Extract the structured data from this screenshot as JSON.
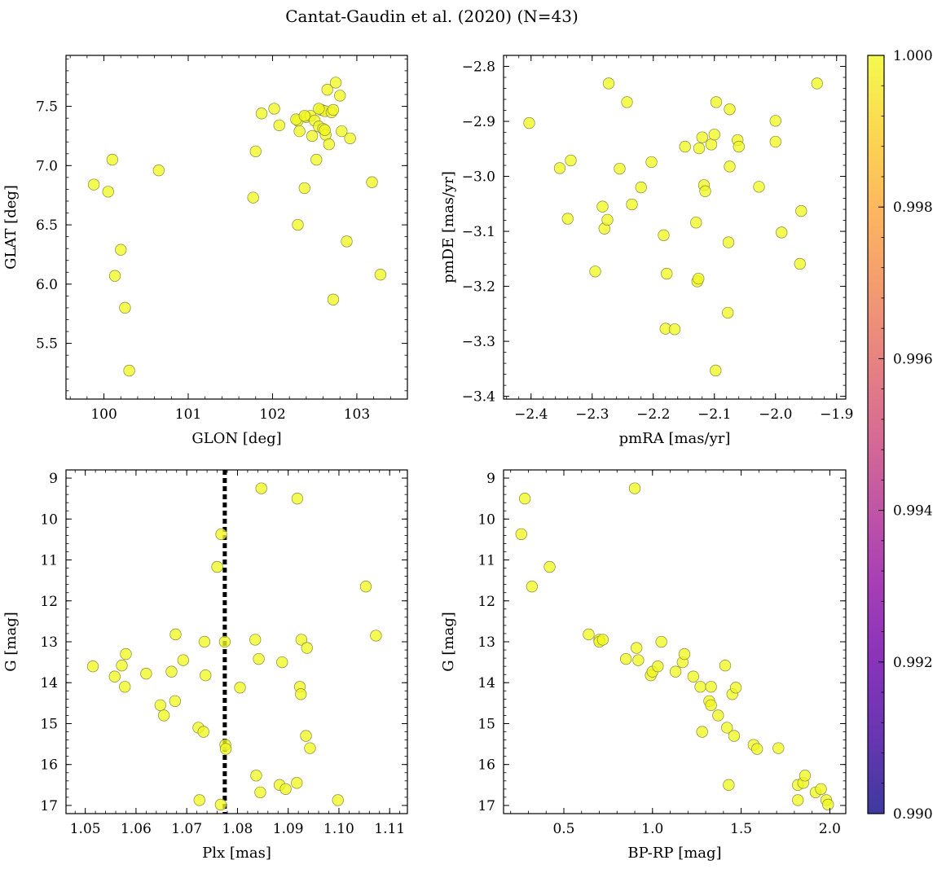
{
  "figure": {
    "title": "Cantat-Gaudin et al. (2020) (N=43)",
    "point_color": "#f0f921",
    "point_edge_color": "#8a8a40",
    "ref_line_color": "#000000"
  },
  "colorbar": {
    "colormap": "plasma",
    "range": [
      0.99,
      1.0
    ],
    "tick_values": [
      0.99,
      0.992,
      0.994,
      0.996,
      0.998,
      1.0
    ],
    "tick_labels": [
      "0.990",
      "0.992",
      "0.994",
      "0.996",
      "0.998",
      "1.000"
    ]
  },
  "chart_data": [
    {
      "id": "glon-glat",
      "type": "scatter",
      "title": "",
      "xlabel": "GLON [deg]",
      "ylabel": "GLAT [deg]",
      "xlim": [
        99.55,
        103.6
      ],
      "ylim": [
        5.03,
        7.93
      ],
      "y_inverted": false,
      "xticks": [
        100,
        101,
        102,
        103
      ],
      "xtick_labels": [
        "100",
        "101",
        "102",
        "103"
      ],
      "yticks": [
        5.5,
        6.0,
        6.5,
        7.0,
        7.5
      ],
      "ytick_labels": [
        "5.5",
        "6.0",
        "6.5",
        "7.0",
        "7.5"
      ],
      "x": [
        99.88,
        100.05,
        100.1,
        100.2,
        100.25,
        100.3,
        100.13,
        100.65,
        101.77,
        101.8,
        101.87,
        102.02,
        102.08,
        102.3,
        102.3,
        102.32,
        102.38,
        102.4,
        102.45,
        102.47,
        102.5,
        102.52,
        102.55,
        102.58,
        102.6,
        102.62,
        102.63,
        102.65,
        102.67,
        102.7,
        102.72,
        102.75,
        102.8,
        102.82,
        102.88,
        102.92,
        102.72,
        103.18,
        103.28,
        102.28,
        102.55,
        102.62,
        102.38
      ],
      "y": [
        6.84,
        6.78,
        7.05,
        6.29,
        5.8,
        5.27,
        6.07,
        6.96,
        6.73,
        7.12,
        7.44,
        7.48,
        7.34,
        6.5,
        7.38,
        7.29,
        6.81,
        7.41,
        7.42,
        7.25,
        7.38,
        7.05,
        7.33,
        7.47,
        7.31,
        7.46,
        7.26,
        7.64,
        7.18,
        7.45,
        7.47,
        7.7,
        7.59,
        7.29,
        6.36,
        7.23,
        5.87,
        6.86,
        6.08,
        7.39,
        7.48,
        7.3,
        7.42
      ]
    },
    {
      "id": "pmra-pmde",
      "type": "scatter",
      "title": "",
      "xlabel": "pmRA [mas/yr]",
      "ylabel": "pmDE [mas/yr]",
      "xlim": [
        -2.445,
        -1.885
      ],
      "ylim": [
        -3.405,
        -2.78
      ],
      "y_inverted": false,
      "xticks": [
        -2.4,
        -2.3,
        -2.2,
        -2.1,
        -2.0,
        -1.9
      ],
      "xtick_labels": [
        "−2.4",
        "−2.3",
        "−2.2",
        "−2.1",
        "−2.0",
        "−1.9"
      ],
      "yticks": [
        -3.4,
        -3.3,
        -3.2,
        -3.1,
        -3.0,
        -2.9,
        -2.8
      ],
      "ytick_labels": [
        "−3.4",
        "−3.3",
        "−3.2",
        "−3.1",
        "−3.0",
        "−2.9",
        "−2.8"
      ],
      "x": [
        -2.403,
        -2.353,
        -2.34,
        -2.335,
        -2.295,
        -2.283,
        -2.28,
        -2.275,
        -2.273,
        -2.255,
        -2.243,
        -2.235,
        -2.22,
        -2.203,
        -2.183,
        -2.18,
        -2.178,
        -2.165,
        -2.148,
        -2.13,
        -2.128,
        -2.126,
        -2.125,
        -2.12,
        -2.117,
        -2.115,
        -2.105,
        -2.1,
        -2.098,
        -2.078,
        -2.077,
        -2.075,
        -2.075,
        -2.062,
        -2.06,
        -2.027,
        -2.0,
        -2.0,
        -1.99,
        -1.96,
        -1.958,
        -1.932,
        -2.097
      ],
      "y": [
        -2.903,
        -2.985,
        -3.077,
        -2.971,
        -3.173,
        -3.055,
        -3.095,
        -3.079,
        -2.831,
        -2.986,
        -2.865,
        -3.051,
        -3.02,
        -2.974,
        -3.107,
        -3.277,
        -3.177,
        -3.278,
        -2.946,
        -3.084,
        -3.191,
        -3.186,
        -2.949,
        -2.929,
        -3.016,
        -3.027,
        -2.942,
        -2.924,
        -3.353,
        -3.248,
        -3.12,
        -2.878,
        -2.982,
        -2.934,
        -2.946,
        -3.019,
        -2.899,
        -2.937,
        -3.102,
        -3.159,
        -3.063,
        -2.831,
        -2.865
      ]
    },
    {
      "id": "plx-g",
      "type": "scatter",
      "title": "",
      "xlabel": "Plx [mas]",
      "ylabel": "G [mag]",
      "xlim": [
        1.0462,
        1.1135
      ],
      "ylim": [
        8.8,
        17.2
      ],
      "y_inverted": true,
      "reference_line_x": 1.0775,
      "xticks": [
        1.05,
        1.06,
        1.07,
        1.08,
        1.09,
        1.1,
        1.11
      ],
      "xtick_labels": [
        "1.05",
        "1.06",
        "1.07",
        "1.08",
        "1.09",
        "1.10",
        "1.11"
      ],
      "yticks": [
        9,
        10,
        11,
        12,
        13,
        14,
        15,
        16,
        17
      ],
      "ytick_labels": [
        "9",
        "10",
        "11",
        "12",
        "13",
        "14",
        "15",
        "16",
        "17"
      ],
      "x": [
        1.0515,
        1.0558,
        1.0572,
        1.0578,
        1.058,
        1.062,
        1.0648,
        1.0655,
        1.067,
        1.0677,
        1.0678,
        1.0693,
        1.0723,
        1.0725,
        1.0733,
        1.0735,
        1.0737,
        1.076,
        1.0767,
        1.0768,
        1.0775,
        1.0776,
        1.0777,
        1.0805,
        1.0835,
        1.0837,
        1.0842,
        1.0845,
        1.0847,
        1.0883,
        1.0888,
        1.0895,
        1.0917,
        1.0918,
        1.0923,
        1.0925,
        1.0926,
        1.0935,
        1.0937,
        1.0943,
        1.0998,
        1.1053,
        1.1073
      ],
      "y": [
        13.6,
        13.85,
        13.58,
        14.1,
        13.3,
        13.78,
        14.55,
        14.8,
        13.73,
        14.45,
        12.82,
        13.45,
        15.1,
        16.87,
        15.2,
        13.0,
        13.82,
        11.17,
        16.98,
        10.37,
        13.0,
        15.52,
        15.62,
        14.12,
        12.95,
        16.27,
        13.42,
        16.68,
        9.25,
        16.5,
        13.5,
        16.6,
        16.45,
        9.5,
        14.1,
        14.28,
        12.95,
        15.3,
        13.15,
        15.6,
        16.87,
        11.65,
        12.85
      ]
    },
    {
      "id": "bprp-g",
      "type": "scatter",
      "title": "",
      "xlabel": "BP-RP [mag]",
      "ylabel": "G [mag]",
      "xlim": [
        0.16,
        2.09
      ],
      "ylim": [
        8.8,
        17.2
      ],
      "y_inverted": true,
      "xticks": [
        0.5,
        1.0,
        1.5,
        2.0
      ],
      "xtick_labels": [
        "0.5",
        "1.0",
        "1.5",
        "2.0"
      ],
      "yticks": [
        9,
        10,
        11,
        12,
        13,
        14,
        15,
        16,
        17
      ],
      "ytick_labels": [
        "9",
        "10",
        "11",
        "12",
        "13",
        "14",
        "15",
        "16",
        "17"
      ],
      "x": [
        0.26,
        0.28,
        0.32,
        0.42,
        0.64,
        0.7,
        0.7,
        0.72,
        0.85,
        0.9,
        0.91,
        0.92,
        0.99,
        1.0,
        1.03,
        1.05,
        1.13,
        1.17,
        1.18,
        1.23,
        1.27,
        1.28,
        1.32,
        1.33,
        1.33,
        1.37,
        1.41,
        1.42,
        1.43,
        1.45,
        1.46,
        1.47,
        1.57,
        1.59,
        1.71,
        1.82,
        1.82,
        1.85,
        1.86,
        1.92,
        1.95,
        1.98,
        1.99
      ],
      "y": [
        10.37,
        9.5,
        11.65,
        11.17,
        12.82,
        12.95,
        13.0,
        12.95,
        13.42,
        9.25,
        13.15,
        13.45,
        13.82,
        13.73,
        13.6,
        13.0,
        13.73,
        13.5,
        13.3,
        13.85,
        14.1,
        15.2,
        14.45,
        14.55,
        14.1,
        14.8,
        13.58,
        15.1,
        16.5,
        14.28,
        15.3,
        14.12,
        15.52,
        15.62,
        15.6,
        16.87,
        16.5,
        16.45,
        16.27,
        16.68,
        16.6,
        16.87,
        16.98
      ]
    }
  ]
}
